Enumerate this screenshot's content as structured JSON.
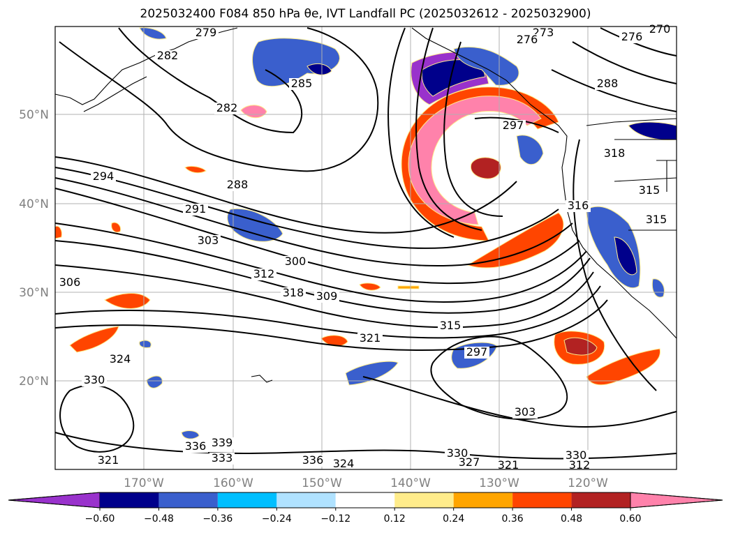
{
  "title": "2025032400 F084 850 hPa θe, IVT Landfall PC (2025032612 - 2025032900)",
  "map": {
    "lat_labels": [
      "50°N",
      "40°N",
      "30°N",
      "20°N"
    ],
    "lon_labels": [
      "170°W",
      "160°W",
      "150°W",
      "140°W",
      "130°W",
      "120°W"
    ],
    "contour_labels": [
      "279",
      "282",
      "285",
      "282",
      "288",
      "291",
      "294",
      "297",
      "303",
      "306",
      "309",
      "312",
      "315",
      "318",
      "321",
      "324",
      "330",
      "336",
      "339",
      "333",
      "336",
      "324",
      "330",
      "327",
      "321",
      "330",
      "312",
      "303",
      "297",
      "300",
      "288",
      "276",
      "270",
      "273",
      "276",
      "315",
      "316",
      "318",
      "315",
      "321"
    ],
    "colors": {
      "purple": "#9932CC",
      "navy": "#00008B",
      "royal": "#3A5FCD",
      "sky": "#00BFFF",
      "lightblue": "#B0E2FF",
      "yellow": "#FFEC8B",
      "orange": "#FFA500",
      "redorange": "#FF4500",
      "firebrick": "#B22222",
      "pink": "#FF82AB"
    }
  },
  "colorbar": {
    "ticks": [
      "−0.60",
      "−0.48",
      "−0.36",
      "−0.24",
      "−0.12",
      "0.12",
      "0.24",
      "0.36",
      "0.48",
      "0.60"
    ],
    "colors": [
      "#9932CC",
      "#00008B",
      "#3A5FCD",
      "#00BFFF",
      "#B0E2FF",
      "#FFFFFF",
      "#FFEC8B",
      "#FFA500",
      "#FF4500",
      "#B22222",
      "#FF82AB"
    ]
  }
}
